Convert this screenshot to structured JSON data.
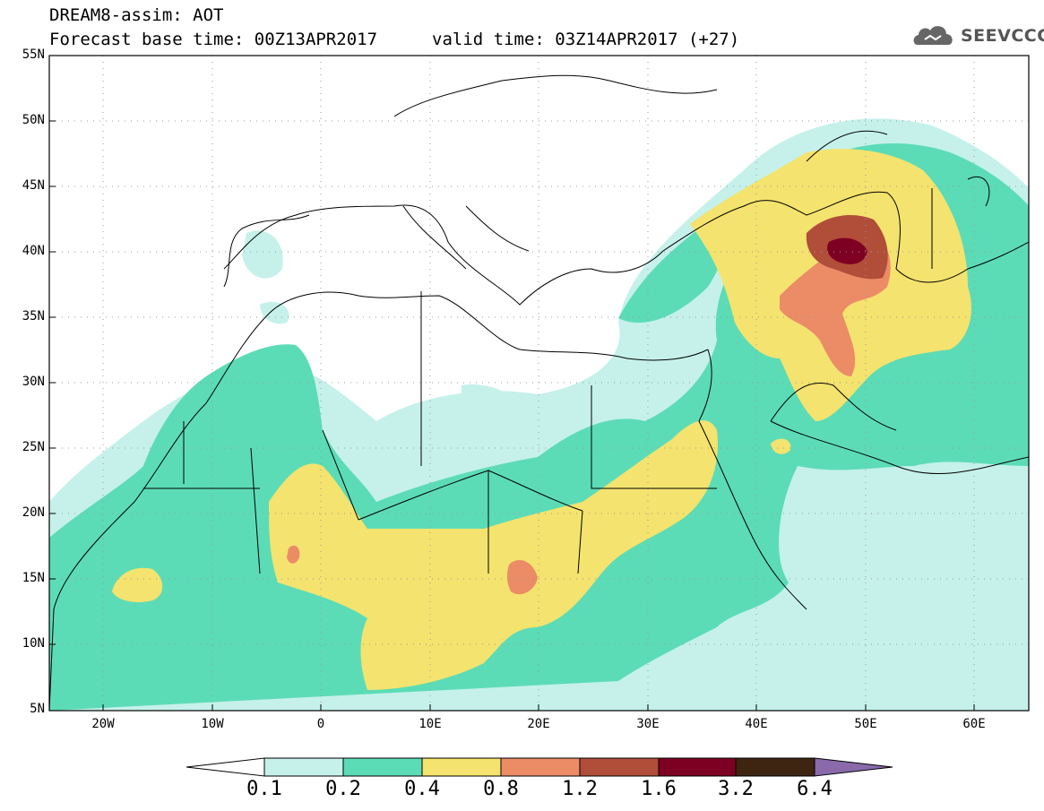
{
  "header": {
    "title": "DREAM8-assim: AOT",
    "base_time": "Forecast base time: 00Z13APR2017",
    "valid_time": "valid time: 03Z14APR2017 (+27)",
    "logo_text": "SEEVCCC"
  },
  "axes": {
    "lat_ticks": [
      "55N",
      "50N",
      "45N",
      "40N",
      "35N",
      "30N",
      "25N",
      "20N",
      "15N",
      "10N",
      "5N"
    ],
    "lon_ticks": [
      "20W",
      "10W",
      "0",
      "10E",
      "20E",
      "30E",
      "40E",
      "50E",
      "60E"
    ],
    "lat_range": [
      5,
      55
    ],
    "lon_range": [
      -25,
      65
    ]
  },
  "colorbar": {
    "levels": [
      "0.1",
      "0.2",
      "0.4",
      "0.8",
      "1.2",
      "1.6",
      "3.2",
      "6.4"
    ],
    "colors": [
      "#ffffff",
      "#c5f1ea",
      "#5cdcb6",
      "#f4e36e",
      "#eb8c67",
      "#b04e3a",
      "#7d0022",
      "#3e2511",
      "#8a6aab"
    ]
  }
}
